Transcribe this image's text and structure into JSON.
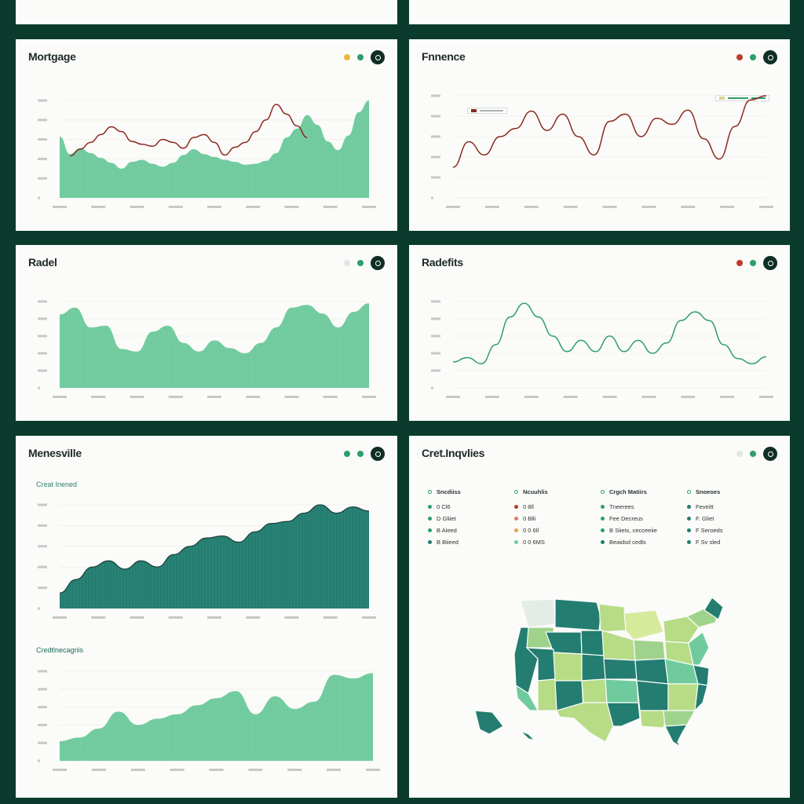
{
  "colors": {
    "background": "#0a3b2c",
    "panel": "#fbfbf9",
    "area_light": "#6fcb9d",
    "line_red": "#8b2a1f",
    "line_green": "#2e9e6a",
    "area_dark": "#237d70",
    "dot_yellow": "#e8b93a",
    "dot_green": "#2e9e6a",
    "dot_red": "#c0392b",
    "dot_gray": "#e2e5e3"
  },
  "panels": {
    "mortgage": {
      "title": "Mortgage",
      "dots": [
        "#e8b93a",
        "#2e9e6a"
      ]
    },
    "finance": {
      "title": "Fnnence",
      "dots": [
        "#c0392b",
        "#2e9e6a"
      ]
    },
    "radel": {
      "title": "Radel",
      "dots": [
        "#e2e5e3",
        "#2e9e6a"
      ]
    },
    "radefits": {
      "title": "Radefits",
      "dots": [
        "#c0392b",
        "#2e9e6a"
      ]
    },
    "menesville": {
      "title": "Menesville",
      "dots": [
        "#2e9e6a",
        "#2e9e6a"
      ],
      "subtitle_top": "Creat Inened",
      "subtitle_bottom": "Credtlnecagriis"
    },
    "credit": {
      "title": "Cret.Inqvlies",
      "dots": [
        "#e2e5e3",
        "#2e9e6a"
      ],
      "stats_headers": [
        "Sncdiiss",
        "Ncuuhlis",
        "Crgch Matiirs",
        "Snoeoes"
      ],
      "stats_rows": [
        [
          "0  Cl6",
          "0  8ll",
          "Tneerees",
          "Feveitt"
        ],
        [
          "D  Gliiet",
          "0  Blli",
          "Fee Decreus",
          "F. Gliet"
        ],
        [
          "B  Aleed",
          "0  0 6ll",
          "B  Siiets, cecceeiie",
          "F  Seroeds"
        ],
        [
          "B  Biieed",
          "0  0 6MS",
          "Beaidsd cedls",
          "F  Sv sled"
        ]
      ],
      "stats_colors": [
        [
          "#2e9e6a",
          "#c0392b",
          "#2e9e6a",
          "#237d70"
        ],
        [
          "#2e9e6a",
          "#e07a5f",
          "#2e9e6a",
          "#237d70"
        ],
        [
          "#2e9e6a",
          "#e8a04a",
          "#2e9e6a",
          "#237d70"
        ],
        [
          "#237d70",
          "#6fcb9d",
          "#237d70",
          "#237d70"
        ]
      ],
      "legend_top": "Nutedecse"
    }
  },
  "chart_data": [
    {
      "id": "mortgage",
      "type": "area",
      "series": [
        {
          "values": [
            0.63,
            0.45,
            0.51,
            0.46,
            0.41,
            0.36,
            0.3,
            0.37,
            0.39,
            0.35,
            0.32,
            0.36,
            0.44,
            0.5,
            0.45,
            0.42,
            0.39,
            0.37,
            0.34,
            0.35,
            0.38,
            0.46,
            0.62,
            0.71,
            0.85,
            0.75,
            0.58,
            0.49,
            0.64,
            0.88,
            1.0
          ]
        },
        {
          "values": [
            null,
            0.43,
            0.5,
            0.57,
            0.65,
            0.73,
            0.68,
            0.58,
            0.55,
            0.53,
            0.6,
            0.57,
            0.51,
            0.62,
            0.65,
            0.57,
            0.44,
            0.52,
            0.57,
            0.68,
            0.8,
            0.96,
            0.86,
            0.74,
            0.62,
            null,
            null,
            null,
            null,
            null,
            null
          ]
        }
      ]
    },
    {
      "id": "finance",
      "type": "line",
      "series": [
        {
          "values": [
            0.3,
            0.55,
            0.42,
            0.6,
            0.68,
            0.85,
            0.66,
            0.82,
            0.6,
            0.42,
            0.75,
            0.82,
            0.6,
            0.78,
            0.72,
            0.86,
            0.58,
            0.38,
            0.7,
            0.96,
            1.0
          ]
        }
      ]
    },
    {
      "id": "radel",
      "type": "area",
      "series": [
        {
          "values": [
            0.85,
            0.93,
            0.7,
            0.72,
            0.45,
            0.42,
            0.65,
            0.72,
            0.52,
            0.42,
            0.55,
            0.46,
            0.4,
            0.52,
            0.7,
            0.93,
            0.96,
            0.86,
            0.7,
            0.88,
            0.98
          ]
        }
      ]
    },
    {
      "id": "radefits",
      "type": "line",
      "series": [
        {
          "values": [
            0.3,
            0.35,
            0.28,
            0.5,
            0.82,
            0.98,
            0.82,
            0.6,
            0.42,
            0.55,
            0.42,
            0.6,
            0.42,
            0.55,
            0.4,
            0.52,
            0.78,
            0.88,
            0.78,
            0.5,
            0.34,
            0.28,
            0.36
          ]
        }
      ]
    },
    {
      "id": "menesville-top",
      "type": "area",
      "series": [
        {
          "values": [
            0.15,
            0.28,
            0.4,
            0.46,
            0.38,
            0.46,
            0.4,
            0.52,
            0.6,
            0.68,
            0.7,
            0.64,
            0.74,
            0.82,
            0.84,
            0.92,
            1.0,
            0.92,
            0.98,
            0.94
          ]
        }
      ]
    },
    {
      "id": "menesville-bottom",
      "type": "area",
      "series": [
        {
          "values": [
            0.22,
            0.26,
            0.36,
            0.55,
            0.4,
            0.47,
            0.52,
            0.62,
            0.7,
            0.78,
            0.52,
            0.72,
            0.58,
            0.66,
            0.96,
            0.92,
            0.98
          ]
        }
      ]
    }
  ]
}
